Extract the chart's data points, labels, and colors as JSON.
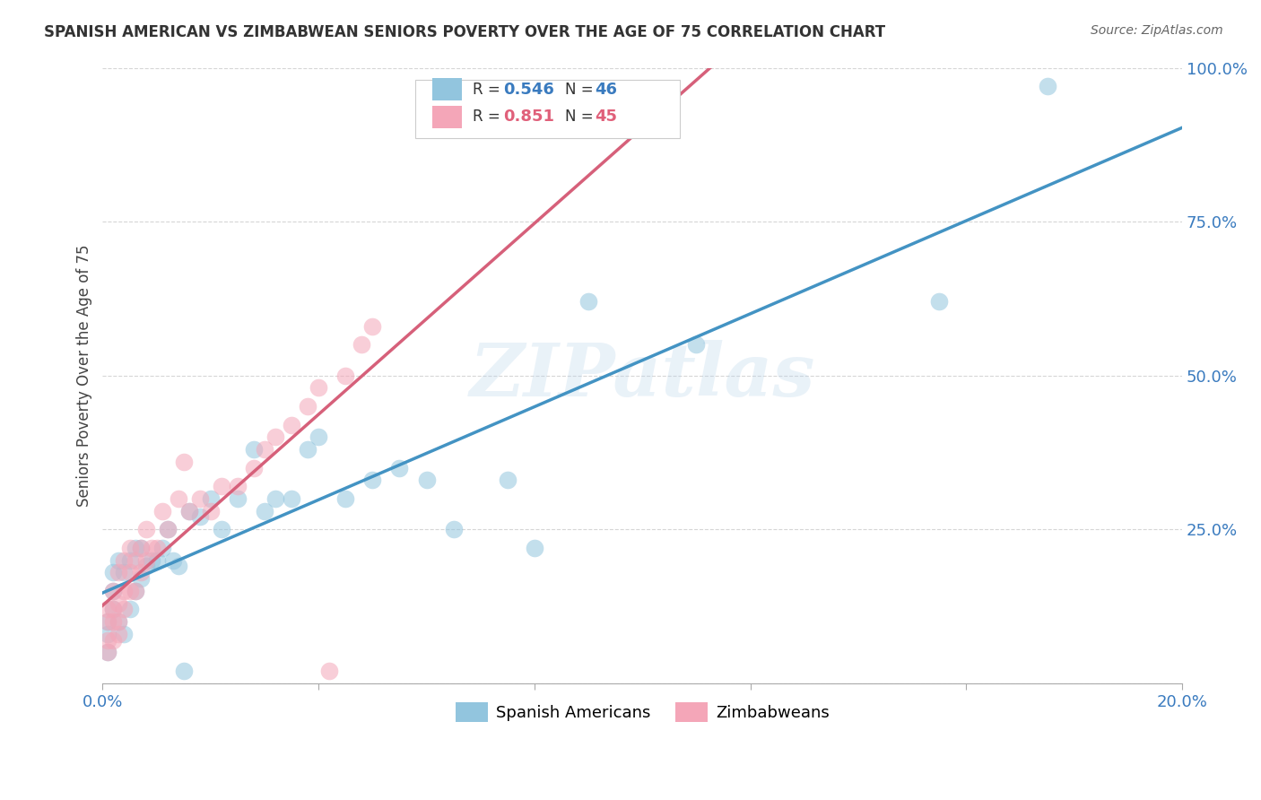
{
  "title": "SPANISH AMERICAN VS ZIMBABWEAN SENIORS POVERTY OVER THE AGE OF 75 CORRELATION CHART",
  "source": "Source: ZipAtlas.com",
  "ylabel": "Seniors Poverty Over the Age of 75",
  "r_spanish": 0.546,
  "n_spanish": 46,
  "r_zimbabwe": 0.851,
  "n_zimbabwe": 45,
  "xlim": [
    0,
    0.2
  ],
  "ylim": [
    0,
    1.0
  ],
  "watermark": "ZIPatlas",
  "blue_color": "#92c5de",
  "pink_color": "#f4a6b8",
  "blue_line_color": "#4393c3",
  "pink_line_color": "#d6607a",
  "legend_blue_color": "#92c5de",
  "legend_pink_color": "#f4a6b8",
  "spanish_x": [
    0.001,
    0.001,
    0.001,
    0.002,
    0.002,
    0.002,
    0.003,
    0.003,
    0.004,
    0.004,
    0.005,
    0.005,
    0.006,
    0.006,
    0.007,
    0.007,
    0.008,
    0.009,
    0.01,
    0.011,
    0.012,
    0.013,
    0.014,
    0.015,
    0.016,
    0.018,
    0.02,
    0.022,
    0.025,
    0.028,
    0.03,
    0.032,
    0.035,
    0.038,
    0.04,
    0.045,
    0.05,
    0.055,
    0.06,
    0.065,
    0.075,
    0.08,
    0.09,
    0.11,
    0.155,
    0.175
  ],
  "spanish_y": [
    0.05,
    0.08,
    0.1,
    0.12,
    0.15,
    0.18,
    0.1,
    0.2,
    0.08,
    0.18,
    0.12,
    0.2,
    0.15,
    0.22,
    0.17,
    0.22,
    0.19,
    0.2,
    0.2,
    0.22,
    0.25,
    0.2,
    0.19,
    0.02,
    0.28,
    0.27,
    0.3,
    0.25,
    0.3,
    0.38,
    0.28,
    0.3,
    0.3,
    0.38,
    0.4,
    0.3,
    0.33,
    0.35,
    0.33,
    0.25,
    0.33,
    0.22,
    0.62,
    0.55,
    0.62,
    0.97
  ],
  "zimbabwe_x": [
    0.001,
    0.001,
    0.001,
    0.001,
    0.002,
    0.002,
    0.002,
    0.002,
    0.003,
    0.003,
    0.003,
    0.003,
    0.004,
    0.004,
    0.004,
    0.005,
    0.005,
    0.005,
    0.006,
    0.006,
    0.007,
    0.007,
    0.008,
    0.008,
    0.009,
    0.01,
    0.011,
    0.012,
    0.014,
    0.015,
    0.016,
    0.018,
    0.02,
    0.022,
    0.025,
    0.028,
    0.03,
    0.032,
    0.035,
    0.038,
    0.04,
    0.042,
    0.045,
    0.048,
    0.05
  ],
  "zimbabwe_y": [
    0.05,
    0.07,
    0.1,
    0.12,
    0.07,
    0.1,
    0.12,
    0.15,
    0.08,
    0.1,
    0.13,
    0.18,
    0.12,
    0.15,
    0.2,
    0.15,
    0.18,
    0.22,
    0.15,
    0.2,
    0.18,
    0.22,
    0.2,
    0.25,
    0.22,
    0.22,
    0.28,
    0.25,
    0.3,
    0.36,
    0.28,
    0.3,
    0.28,
    0.32,
    0.32,
    0.35,
    0.38,
    0.4,
    0.42,
    0.45,
    0.48,
    0.02,
    0.5,
    0.55,
    0.58
  ]
}
